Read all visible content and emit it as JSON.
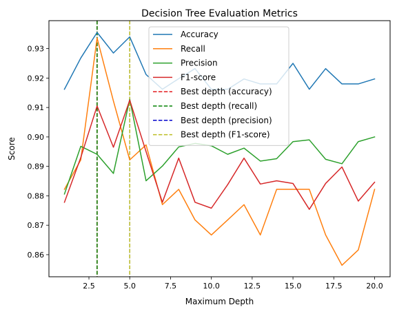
{
  "chart_data": {
    "type": "line",
    "title": "Decision Tree Evaluation Metrics",
    "xlabel": "Maximum Depth",
    "ylabel": "Score",
    "xlim": [
      0.05,
      20.95
    ],
    "ylim": [
      0.8525,
      0.9395
    ],
    "xticks": [
      2.5,
      5.0,
      7.5,
      10.0,
      12.5,
      15.0,
      17.5,
      20.0
    ],
    "xtick_labels": [
      "2.5",
      "5.0",
      "7.5",
      "10.0",
      "12.5",
      "15.0",
      "17.5",
      "20.0"
    ],
    "yticks": [
      0.86,
      0.87,
      0.88,
      0.89,
      0.9,
      0.91,
      0.92,
      0.93
    ],
    "ytick_labels": [
      "0.86",
      "0.87",
      "0.88",
      "0.89",
      "0.90",
      "0.91",
      "0.92",
      "0.93"
    ],
    "grid": false,
    "legend_position": "top-center",
    "x": [
      1,
      2,
      3,
      4,
      5,
      6,
      7,
      8,
      9,
      10,
      11,
      12,
      13,
      14,
      15,
      16,
      17,
      18,
      19,
      20
    ],
    "series": [
      {
        "name": "Accuracy",
        "color": "#1f77b4",
        "style": "solid",
        "values": [
          0.9162,
          0.9268,
          0.9355,
          0.9285,
          0.934,
          0.9212,
          0.9162,
          0.9198,
          0.9232,
          0.9162,
          0.9162,
          0.9197,
          0.918,
          0.918,
          0.925,
          0.9162,
          0.9232,
          0.918,
          0.918,
          0.9197
        ]
      },
      {
        "name": "Recall",
        "color": "#ff7f0e",
        "style": "solid",
        "values": [
          0.8822,
          0.8922,
          0.9336,
          0.9122,
          0.8922,
          0.8973,
          0.877,
          0.8822,
          0.8718,
          0.8667,
          0.8718,
          0.877,
          0.8667,
          0.8822,
          0.8822,
          0.8822,
          0.8667,
          0.8564,
          0.8616,
          0.8822
        ]
      },
      {
        "name": "Precision",
        "color": "#2ca02c",
        "style": "solid",
        "values": [
          0.8806,
          0.8968,
          0.8941,
          0.8876,
          0.9128,
          0.8851,
          0.8901,
          0.8966,
          0.8978,
          0.897,
          0.8941,
          0.8962,
          0.8918,
          0.8926,
          0.8984,
          0.899,
          0.8924,
          0.8909,
          0.8984,
          0.9
        ]
      },
      {
        "name": "F1-score",
        "color": "#d62728",
        "style": "solid",
        "values": [
          0.8778,
          0.893,
          0.9105,
          0.8965,
          0.9125,
          0.895,
          0.8778,
          0.8928,
          0.8778,
          0.8758,
          0.8838,
          0.8928,
          0.884,
          0.8851,
          0.8842,
          0.8754,
          0.8842,
          0.8898,
          0.8782,
          0.8846
        ]
      },
      {
        "name": "Best depth (accuracy)",
        "color": "#e31a1c",
        "style": "dashed",
        "vline": 3
      },
      {
        "name": "Best depth (recall)",
        "color": "#008000",
        "style": "dashed",
        "vline": 3
      },
      {
        "name": "Best depth (precision)",
        "color": "#0000cc",
        "style": "dashed",
        "vline": 5
      },
      {
        "name": "Best depth (F1-score)",
        "color": "#bcbd22",
        "style": "dashed",
        "vline": 5
      }
    ]
  }
}
